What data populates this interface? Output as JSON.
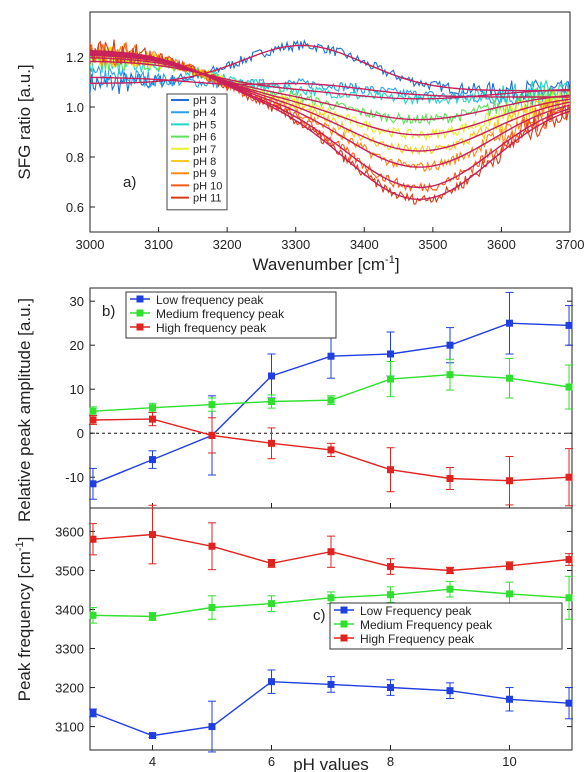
{
  "chart_data": [
    {
      "type": "line",
      "panel_label": "a)",
      "xlabel": "Wavenumber [cm",
      "xlabel_sup": "-1",
      "xlabel_close": "]",
      "ylabel": "SFG ratio [a.u.]",
      "xlim": [
        3000,
        3700
      ],
      "ylim": [
        0.5,
        1.38
      ],
      "xticks": [
        3000,
        3100,
        3200,
        3300,
        3400,
        3500,
        3600,
        3700
      ],
      "xtick_labels": [
        "3000",
        "3100",
        "3200",
        "3300",
        "3400",
        "3500",
        "3600",
        "3700"
      ],
      "yticks": [
        0.6,
        0.8,
        1.0,
        1.2
      ],
      "ytick_labels": [
        "0.6",
        "0.8",
        "1.0",
        "1.2"
      ],
      "legend_position": "center-left",
      "fit_color": "#c8205a",
      "series": [
        {
          "name": "pH 3",
          "color": "#1f6fd6",
          "a": 0.03,
          "b": 0.18,
          "c": 0.03
        },
        {
          "name": "pH 4",
          "color": "#2aa0f0",
          "a": 0.08,
          "b": 0.05,
          "c": 0.05
        },
        {
          "name": "pH 5",
          "color": "#22d6c8",
          "a": 0.11,
          "b": -0.05,
          "c": 0.07
        },
        {
          "name": "pH 6",
          "color": "#5fe05a",
          "a": 0.14,
          "b": -0.13,
          "c": 0.09
        },
        {
          "name": "pH 7",
          "color": "#e7f02a",
          "a": 0.16,
          "b": -0.19,
          "c": 0.1
        },
        {
          "name": "pH 8",
          "color": "#ffc820",
          "a": 0.17,
          "b": -0.26,
          "c": 0.11
        },
        {
          "name": "pH 9",
          "color": "#ff8a1a",
          "a": 0.18,
          "b": -0.33,
          "c": 0.12
        },
        {
          "name": "pH 10",
          "color": "#ff5a14",
          "a": 0.19,
          "b": -0.42,
          "c": 0.12
        },
        {
          "name": "pH 11",
          "color": "#d83c14",
          "a": 0.2,
          "b": -0.47,
          "c": 0.13
        }
      ]
    },
    {
      "type": "line",
      "panel_label": "b)",
      "ylabel": "Relative peak amplitude [a.u.]",
      "xlim": [
        2.95,
        11.05
      ],
      "ylim": [
        -17,
        33
      ],
      "yticks": [
        -10,
        0,
        10,
        20,
        30
      ],
      "ytick_labels": [
        "-10",
        "0",
        "10",
        "20",
        "30"
      ],
      "reference_line": 0,
      "legend_position": "top-left",
      "x": [
        3,
        4,
        5,
        6,
        7,
        8,
        9,
        10,
        11
      ],
      "series": [
        {
          "name": "Low frequency peak",
          "color": "#1f3fe0",
          "values": [
            -11.5,
            -6,
            -0.5,
            13,
            17.5,
            18,
            20,
            25,
            24.5
          ],
          "errors": [
            3.5,
            2,
            9,
            5,
            5,
            5,
            4,
            7,
            4.5
          ]
        },
        {
          "name": "Medium frequency peak",
          "color": "#2fe02f",
          "values": [
            5,
            5.8,
            6.5,
            7.2,
            7.5,
            12.3,
            13.3,
            12.5,
            10.5
          ],
          "errors": [
            1,
            1,
            1.5,
            1.5,
            1,
            4,
            3.5,
            4.5,
            5
          ]
        },
        {
          "name": "High frequency peak",
          "color": "#e0231f",
          "values": [
            3,
            3.2,
            -0.5,
            -2.3,
            -3.8,
            -8.3,
            -10.3,
            -10.8,
            -10
          ],
          "errors": [
            1,
            1.5,
            4,
            3.5,
            1.5,
            5,
            2.5,
            5.5,
            6.5
          ]
        }
      ]
    },
    {
      "type": "line",
      "panel_label": "c)",
      "xlabel": "pH values",
      "ylabel": "Peak frequency [cm",
      "ylabel_sup": "-1",
      "ylabel_close": "]",
      "xlim": [
        2.95,
        11.05
      ],
      "ylim": [
        3040,
        3660
      ],
      "xticks": [
        4,
        6,
        8,
        10
      ],
      "xtick_labels": [
        "4",
        "6",
        "8",
        "10"
      ],
      "yticks": [
        3100,
        3200,
        3300,
        3400,
        3500,
        3600
      ],
      "ytick_labels": [
        "3100",
        "3200",
        "3300",
        "3400",
        "3500",
        "3600"
      ],
      "legend_position": "center-right",
      "x": [
        3,
        4,
        5,
        6,
        7,
        8,
        9,
        10,
        11
      ],
      "series": [
        {
          "name": "Low Frequency peak",
          "color": "#1f3fe0",
          "values": [
            3135,
            3077,
            3100,
            3215,
            3208,
            3200,
            3192,
            3170,
            3160
          ],
          "errors": [
            10,
            5,
            65,
            30,
            20,
            20,
            20,
            30,
            40
          ]
        },
        {
          "name": "Medium Frequency peak",
          "color": "#2fe02f",
          "values": [
            3385,
            3382,
            3405,
            3415,
            3430,
            3438,
            3452,
            3440,
            3430
          ],
          "errors": [
            20,
            10,
            30,
            20,
            15,
            20,
            20,
            30,
            55
          ]
        },
        {
          "name": "High Frequency peak",
          "color": "#e0231f",
          "values": [
            3580,
            3592,
            3562,
            3518,
            3548,
            3510,
            3500,
            3512,
            3528
          ],
          "errors": [
            40,
            75,
            60,
            10,
            40,
            20,
            8,
            10,
            15
          ]
        }
      ]
    }
  ]
}
